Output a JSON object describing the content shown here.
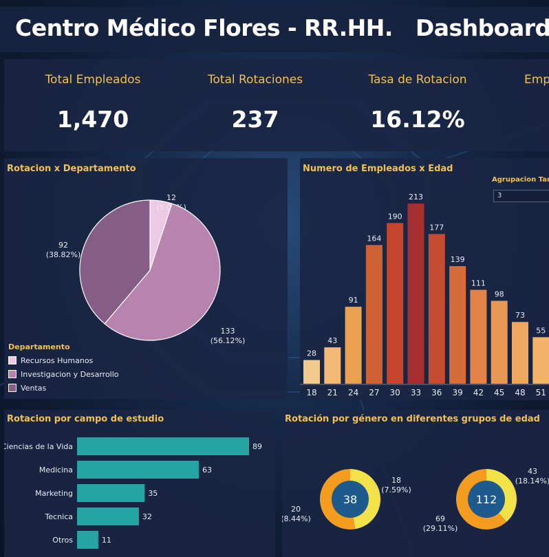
{
  "dashboard": {
    "title": "Centro Médico Flores - RR.HH.   Dashboard"
  },
  "kpis": [
    {
      "label": "Total Empleados",
      "value": "1,470"
    },
    {
      "label": "Total Rotaciones",
      "value": "237"
    },
    {
      "label": "Tasa de Rotacion",
      "value": "16.12%"
    },
    {
      "label": "Emp",
      "value": ""
    }
  ],
  "pie_panel": {
    "title": "Rotacion x Departamento",
    "legend_title": "Departamento",
    "legend": [
      {
        "label": "Recursos Humanos",
        "color": "#eec9e3"
      },
      {
        "label": "Investigacion y Desarrollo",
        "color": "#b783af"
      },
      {
        "label": "Ventas",
        "color": "#855d86"
      }
    ]
  },
  "bar_panel": {
    "title": "Numero de Empleados x Edad",
    "filter_label": "Agrupacion Tam",
    "filter_value": "3"
  },
  "field_panel": {
    "title": "Rotacion por campo de estudio"
  },
  "gender_panel": {
    "title": "Rotación por género en diferentes grupos de edad"
  },
  "chart_data": [
    {
      "type": "pie",
      "title": "Rotacion x Departamento",
      "legend_title": "Departamento",
      "slices": [
        {
          "label": "Recursos Humanos",
          "value": 12,
          "percent": "5.06%",
          "color": "#eec9e3"
        },
        {
          "label": "Investigacion y Desarrollo",
          "value": 133,
          "percent": "56.12%",
          "color": "#b783af"
        },
        {
          "label": "Ventas",
          "value": 92,
          "percent": "38.82%",
          "color": "#855d86"
        }
      ]
    },
    {
      "type": "bar",
      "title": "Numero de Empleados x Edad",
      "categories": [
        "18",
        "21",
        "24",
        "27",
        "30",
        "33",
        "36",
        "39",
        "42",
        "45",
        "48",
        "51"
      ],
      "values": [
        28,
        43,
        91,
        164,
        190,
        213,
        177,
        139,
        111,
        98,
        73,
        55
      ],
      "ylim": [
        0,
        213
      ]
    },
    {
      "type": "bar",
      "orientation": "horizontal",
      "title": "Rotacion por campo de estudio",
      "categories": [
        "Ciencias de la Vida",
        "Medicina",
        "Marketing",
        "Tecnica",
        "Otros"
      ],
      "values": [
        89,
        63,
        35,
        32,
        11
      ],
      "color": "#26a3a3"
    },
    {
      "type": "pie",
      "variant": "donut",
      "title": "Rotación por género en diferentes grupos de edad",
      "groups": [
        {
          "total": 38,
          "slices": [
            {
              "value": 18,
              "percent": "7.59%"
            },
            {
              "value": 20,
              "percent": "8.44%"
            }
          ]
        },
        {
          "total": 112,
          "slices": [
            {
              "value": 43,
              "percent": "18.14%"
            },
            {
              "value": 69,
              "percent": "29.11%"
            }
          ]
        }
      ],
      "colors": [
        "#f2e24a",
        "#f39c1f"
      ]
    }
  ]
}
